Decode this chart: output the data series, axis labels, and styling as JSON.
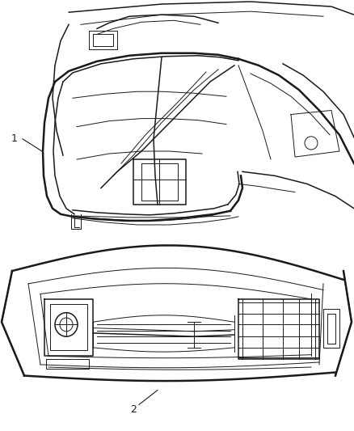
{
  "background_color": "#ffffff",
  "figure_width": 4.38,
  "figure_height": 5.33,
  "dpi": 100,
  "label1": "1",
  "label2": "2",
  "color": "#1a1a1a"
}
